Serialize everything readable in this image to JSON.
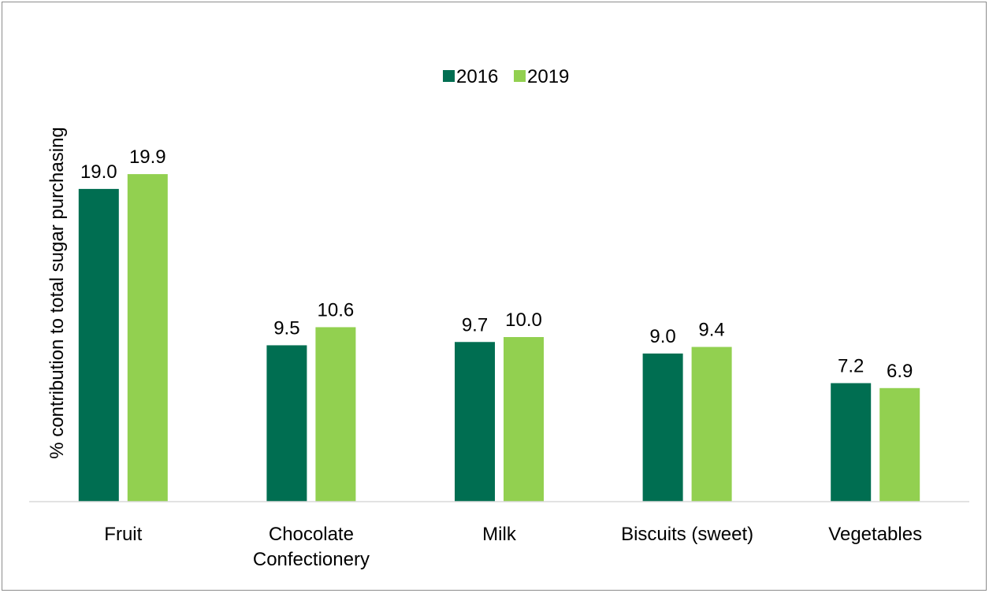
{
  "chart_data": {
    "type": "bar",
    "title": "",
    "xlabel": "",
    "ylabel": "% contribution to total sugar purchasing",
    "categories": [
      [
        "Fruit"
      ],
      [
        "Chocolate",
        "Confectionery"
      ],
      [
        "Milk"
      ],
      [
        "Biscuits (sweet)"
      ],
      [
        "Vegetables"
      ]
    ],
    "series": [
      {
        "name": "2016",
        "color": "#006e51",
        "values": [
          19.0,
          9.5,
          9.7,
          9.0,
          7.2
        ],
        "labels": [
          "19.0",
          "9.5",
          "9.7",
          "9.0",
          "7.2"
        ]
      },
      {
        "name": "2019",
        "color": "#92d050",
        "values": [
          19.9,
          10.6,
          10.0,
          9.4,
          6.9
        ],
        "labels": [
          "19.9",
          "10.6",
          "10.0",
          "9.4",
          "6.9"
        ]
      }
    ],
    "ylim": [
      0,
      20
    ],
    "grid": false,
    "legend_position": "top-center",
    "axis_line_color": "#d9d9d9"
  }
}
